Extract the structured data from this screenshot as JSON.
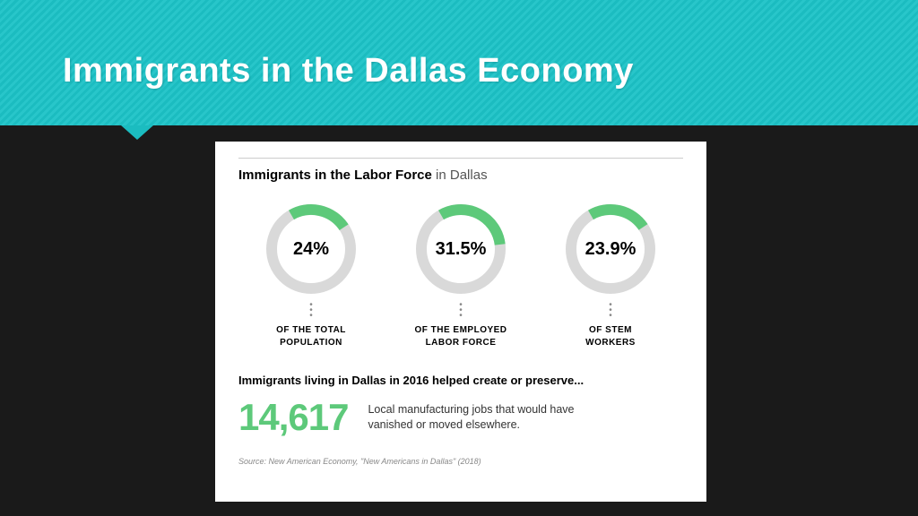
{
  "colors": {
    "accent_teal": "#1bbcc0",
    "donut_fill": "#5dc97a",
    "donut_track": "#d9d9d9",
    "big_number": "#5dc97a",
    "bg_dark": "#1a1a1a",
    "card_bg": "#ffffff"
  },
  "header": {
    "title": "Immigrants in the Dallas Economy"
  },
  "card": {
    "subtitle_bold": "Immigrants in the Labor Force",
    "subtitle_rest": " in Dallas",
    "donuts": [
      {
        "percent": 24.0,
        "display": "24%",
        "label_line1": "OF THE TOTAL",
        "label_line2": "POPULATION"
      },
      {
        "percent": 31.5,
        "display": "31.5%",
        "label_line1": "OF THE EMPLOYED",
        "label_line2": "LABOR FORCE"
      },
      {
        "percent": 23.9,
        "display": "23.9%",
        "label_line1": "OF STEM",
        "label_line2": "WORKERS"
      }
    ],
    "donut_style": {
      "outer_radius": 50,
      "stroke_width": 12,
      "start_angle_deg": -30
    },
    "statement": "Immigrants living in Dallas in 2016 helped create or preserve...",
    "big_number": "14,617",
    "big_desc": "Local manufacturing jobs that would have vanished or moved elsewhere.",
    "source": "Source: New American Economy, \"New Americans in Dallas\" (2018)"
  }
}
